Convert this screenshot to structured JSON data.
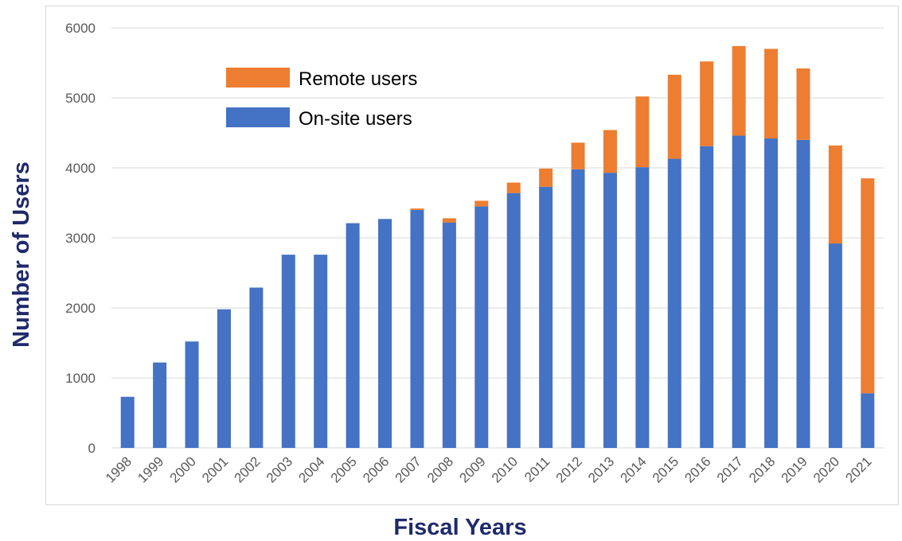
{
  "chart_data": {
    "type": "bar",
    "stacked": true,
    "xlabel": "Fiscal Years",
    "ylabel": "Number of Users",
    "ylim": [
      0,
      6000
    ],
    "yticks": [
      0,
      1000,
      2000,
      3000,
      4000,
      5000,
      6000
    ],
    "grid": true,
    "legend_position": "top-left",
    "categories": [
      "1998",
      "1999",
      "2000",
      "2001",
      "2002",
      "2003",
      "2004",
      "2005",
      "2006",
      "2007",
      "2008",
      "2009",
      "2010",
      "2011",
      "2012",
      "2013",
      "2014",
      "2015",
      "2016",
      "2017",
      "2018",
      "2019",
      "2020",
      "2021"
    ],
    "series": [
      {
        "name": "On-site users",
        "color": "#4472c4",
        "values": [
          730,
          1220,
          1520,
          1980,
          2290,
          2760,
          2760,
          3210,
          3270,
          3400,
          3220,
          3450,
          3640,
          3730,
          3980,
          3930,
          4010,
          4130,
          4310,
          4460,
          4420,
          4400,
          2920,
          780
        ]
      },
      {
        "name": "Remote users",
        "color": "#ed7d31",
        "values": [
          0,
          0,
          0,
          0,
          0,
          0,
          0,
          0,
          0,
          20,
          60,
          80,
          150,
          260,
          380,
          610,
          1010,
          1200,
          1210,
          1280,
          1280,
          1020,
          1400,
          3070
        ]
      }
    ]
  }
}
